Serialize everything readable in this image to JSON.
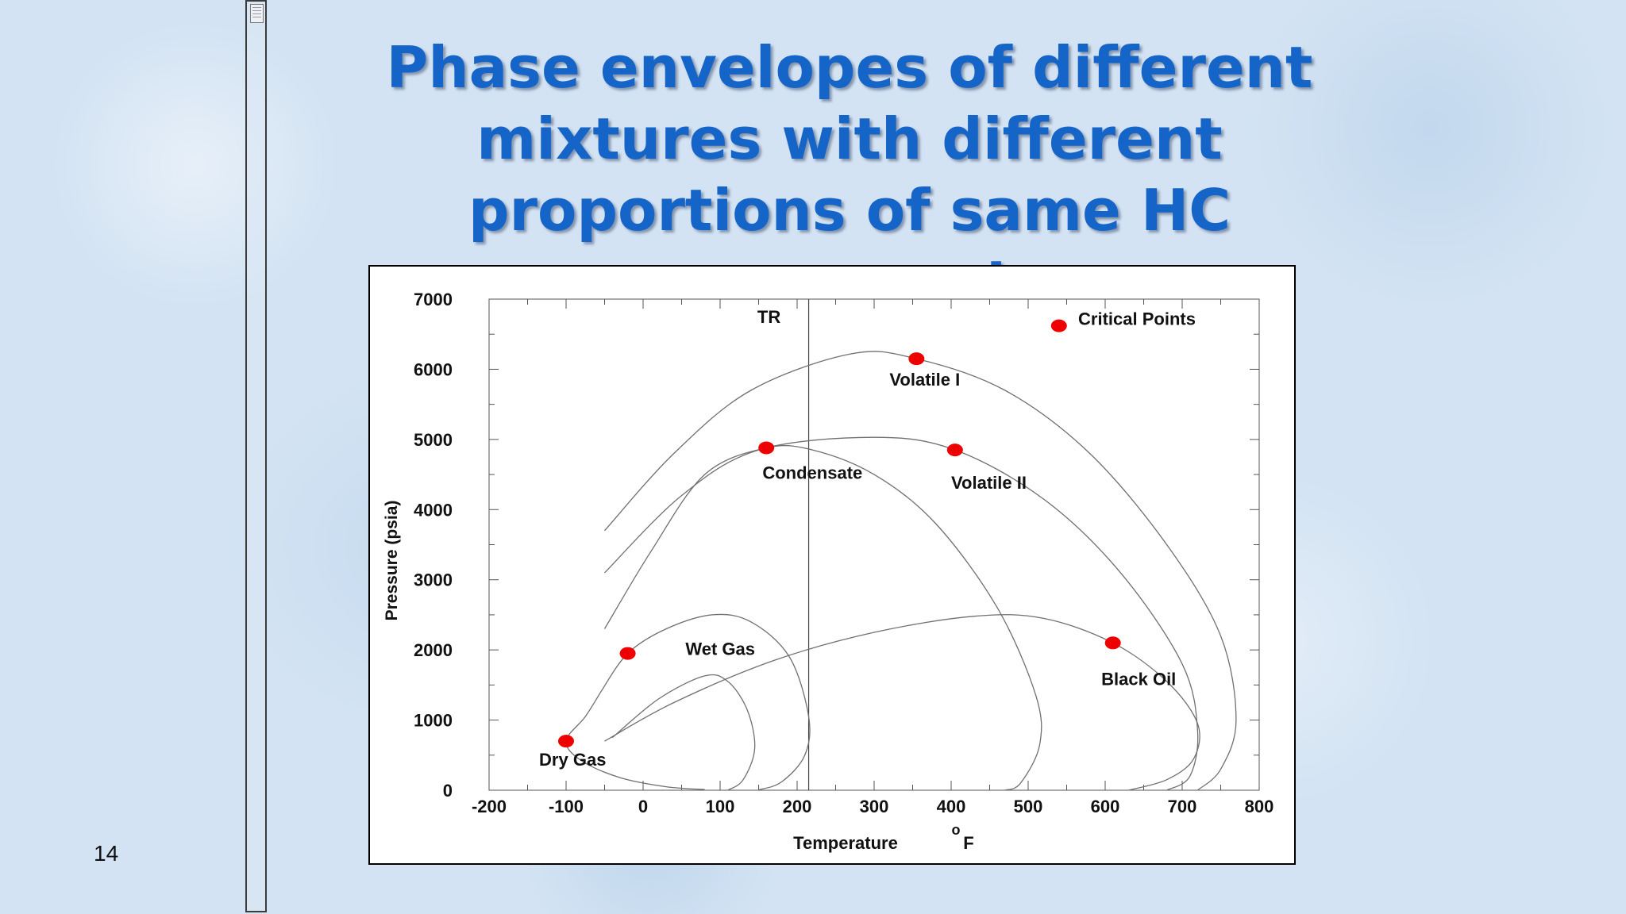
{
  "slide": {
    "title": "Phase envelopes of different mixtures with different proportions of same HC components",
    "page_number": "14"
  },
  "colors": {
    "title": "#1565c8",
    "critical_point": "#ee0000",
    "curve": "#707070"
  },
  "chart_data": {
    "type": "line",
    "title": "",
    "xlabel": "Temperature",
    "xlabel_unit_sup": "o",
    "xlabel_unit": "F",
    "ylabel": "Pressure (psia)",
    "xlim": [
      -200,
      800
    ],
    "ylim": [
      0,
      7000
    ],
    "grid": false,
    "x_ticks": [
      -200,
      -100,
      0,
      100,
      200,
      300,
      400,
      500,
      600,
      700,
      800
    ],
    "y_ticks": [
      0,
      1000,
      2000,
      3000,
      4000,
      5000,
      6000,
      7000
    ],
    "reference_line": {
      "label": "TR",
      "x": 215
    },
    "legend": {
      "label": "Critical Points",
      "placement": "top-right"
    },
    "series": [
      {
        "name": "Dry Gas",
        "critical_point": [
          -100,
          700
        ],
        "curve": [
          [
            -55,
            1400
          ],
          [
            -75,
            1050
          ],
          [
            -100,
            700
          ],
          [
            -80,
            420
          ],
          [
            -30,
            180
          ],
          [
            30,
            50
          ],
          [
            80,
            10
          ]
        ]
      },
      {
        "name": "Wet Gas",
        "critical_point": [
          -20,
          1950
        ],
        "curve": [
          [
            -55,
            1400
          ],
          [
            -20,
            1950
          ],
          [
            30,
            2300
          ],
          [
            90,
            2500
          ],
          [
            140,
            2400
          ],
          [
            190,
            1900
          ],
          [
            215,
            1050
          ],
          [
            210,
            500
          ],
          [
            180,
            120
          ],
          [
            150,
            5
          ]
        ]
      },
      {
        "name": "Condensate",
        "critical_point": [
          160,
          4880
        ],
        "curve": [
          [
            -50,
            2300
          ],
          [
            10,
            3400
          ],
          [
            80,
            4500
          ],
          [
            160,
            4880
          ],
          [
            220,
            4850
          ],
          [
            300,
            4500
          ],
          [
            380,
            3800
          ],
          [
            460,
            2600
          ],
          [
            510,
            1350
          ],
          [
            515,
            650
          ],
          [
            490,
            100
          ],
          [
            470,
            0
          ]
        ]
      },
      {
        "name": "Volatile II",
        "critical_point": [
          405,
          4850
        ],
        "curve": [
          [
            -50,
            3100
          ],
          [
            50,
            4200
          ],
          [
            150,
            4850
          ],
          [
            300,
            5030
          ],
          [
            405,
            4850
          ],
          [
            520,
            4150
          ],
          [
            620,
            3100
          ],
          [
            700,
            1800
          ],
          [
            720,
            850
          ],
          [
            710,
            200
          ],
          [
            680,
            0
          ]
        ]
      },
      {
        "name": "Volatile I",
        "critical_point": [
          355,
          6150
        ],
        "curve": [
          [
            -50,
            3700
          ],
          [
            40,
            4800
          ],
          [
            140,
            5700
          ],
          [
            270,
            6220
          ],
          [
            355,
            6150
          ],
          [
            470,
            5700
          ],
          [
            580,
            4800
          ],
          [
            680,
            3500
          ],
          [
            750,
            2200
          ],
          [
            770,
            1000
          ],
          [
            750,
            300
          ],
          [
            720,
            0
          ]
        ]
      },
      {
        "name": "Black Oil",
        "critical_point": [
          610,
          2100
        ],
        "curve": [
          [
            -50,
            700
          ],
          [
            40,
            1250
          ],
          [
            170,
            1850
          ],
          [
            300,
            2250
          ],
          [
            430,
            2480
          ],
          [
            520,
            2450
          ],
          [
            610,
            2100
          ],
          [
            680,
            1550
          ],
          [
            720,
            950
          ],
          [
            715,
            450
          ],
          [
            680,
            150
          ],
          [
            630,
            0
          ]
        ]
      },
      {
        "name": "",
        "critical_point": null,
        "curve": [
          [
            -40,
            750
          ],
          [
            20,
            1300
          ],
          [
            80,
            1630
          ],
          [
            110,
            1550
          ],
          [
            135,
            1150
          ],
          [
            145,
            600
          ],
          [
            130,
            150
          ],
          [
            110,
            0
          ]
        ]
      }
    ],
    "label_positions": {
      "Volatile I": [
        320,
        5770
      ],
      "Condensate": [
        155,
        4440
      ],
      "Volatile II": [
        400,
        4300
      ],
      "Wet Gas": [
        55,
        1930
      ],
      "Black Oil": [
        595,
        1500
      ],
      "Dry Gas": [
        -135,
        350
      ]
    }
  }
}
